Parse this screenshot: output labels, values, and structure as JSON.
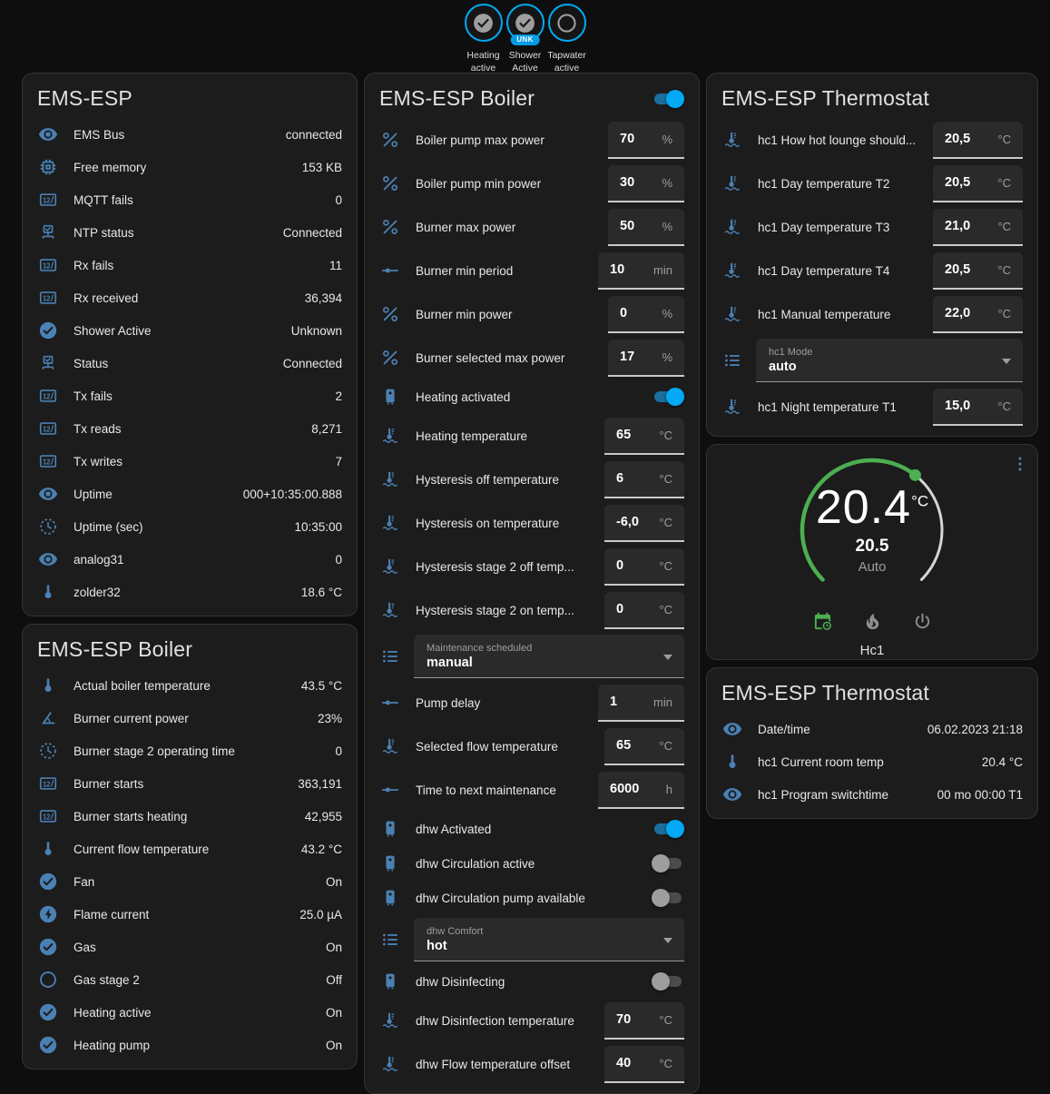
{
  "palette": {
    "accent_blue": "#03a9f4",
    "icon_blue": "#4a80b4",
    "green": "#4caf50",
    "card_bg": "#1c1c1c"
  },
  "badges": [
    {
      "name": "heating-active",
      "icon": "check-circle",
      "label_line1": "Heating",
      "label_line2": "active",
      "sub_badge": ""
    },
    {
      "name": "shower-active",
      "icon": "check-circle",
      "label_line1": "Shower",
      "label_line2": "Active",
      "sub_badge": "UNK"
    },
    {
      "name": "tapwater-active",
      "icon": "circle-outline",
      "label_line1": "Tapwater",
      "label_line2": "active",
      "sub_badge": ""
    }
  ],
  "columns": {
    "left": [
      {
        "title": "EMS-ESP",
        "rows": [
          {
            "kind": "sensor",
            "icon": "eye",
            "label": "EMS Bus",
            "value": "connected"
          },
          {
            "kind": "sensor",
            "icon": "memory",
            "label": "Free memory",
            "value": "153 KB"
          },
          {
            "kind": "sensor",
            "icon": "counter",
            "label": "MQTT fails",
            "value": "0"
          },
          {
            "kind": "sensor",
            "icon": "lan-check",
            "label": "NTP status",
            "value": "Connected"
          },
          {
            "kind": "sensor",
            "icon": "counter",
            "label": "Rx fails",
            "value": "11"
          },
          {
            "kind": "sensor",
            "icon": "counter",
            "label": "Rx received",
            "value": "36,394"
          },
          {
            "kind": "sensor",
            "icon": "check-circle",
            "label": "Shower Active",
            "value": "Unknown"
          },
          {
            "kind": "sensor",
            "icon": "lan-check",
            "label": "Status",
            "value": "Connected"
          },
          {
            "kind": "sensor",
            "icon": "counter",
            "label": "Tx fails",
            "value": "2"
          },
          {
            "kind": "sensor",
            "icon": "counter",
            "label": "Tx reads",
            "value": "8,271"
          },
          {
            "kind": "sensor",
            "icon": "counter",
            "label": "Tx writes",
            "value": "7"
          },
          {
            "kind": "sensor",
            "icon": "eye",
            "label": "Uptime",
            "value": "000+10:35:00.888"
          },
          {
            "kind": "sensor",
            "icon": "progress-clock",
            "label": "Uptime (sec)",
            "value": "10:35:00"
          },
          {
            "kind": "sensor",
            "icon": "eye",
            "label": "analog31",
            "value": "0"
          },
          {
            "kind": "sensor",
            "icon": "thermometer",
            "label": "zolder32",
            "value": "18.6 °C"
          }
        ]
      },
      {
        "title": "EMS-ESP Boiler",
        "rows": [
          {
            "kind": "sensor",
            "icon": "thermometer",
            "label": "Actual boiler temperature",
            "value": "43.5 °C"
          },
          {
            "kind": "sensor",
            "icon": "angle-acute",
            "label": "Burner current power",
            "value": "23%"
          },
          {
            "kind": "sensor",
            "icon": "progress-clock",
            "label": "Burner stage 2 operating time",
            "value": "0"
          },
          {
            "kind": "sensor",
            "icon": "counter",
            "label": "Burner starts",
            "value": "363,191"
          },
          {
            "kind": "sensor",
            "icon": "counter",
            "label": "Burner starts heating",
            "value": "42,955"
          },
          {
            "kind": "sensor",
            "icon": "thermometer",
            "label": "Current flow temperature",
            "value": "43.2 °C"
          },
          {
            "kind": "sensor",
            "icon": "check-circle",
            "label": "Fan",
            "value": "On"
          },
          {
            "kind": "sensor",
            "icon": "flash-circle",
            "label": "Flame current",
            "value": "25.0 µA"
          },
          {
            "kind": "sensor",
            "icon": "check-circle",
            "label": "Gas",
            "value": "On"
          },
          {
            "kind": "sensor",
            "icon": "circle-outline",
            "label": "Gas stage 2",
            "value": "Off"
          },
          {
            "kind": "sensor",
            "icon": "check-circle",
            "label": "Heating active",
            "value": "On"
          },
          {
            "kind": "sensor",
            "icon": "check-circle",
            "label": "Heating pump",
            "value": "On"
          }
        ]
      }
    ],
    "middle": [
      {
        "title": "EMS-ESP Boiler",
        "header_toggle": "on",
        "rows": [
          {
            "kind": "number",
            "icon": "percent",
            "label": "Boiler pump max power",
            "value": "70",
            "unit": "%"
          },
          {
            "kind": "number",
            "icon": "percent",
            "label": "Boiler pump min power",
            "value": "30",
            "unit": "%"
          },
          {
            "kind": "number",
            "icon": "percent",
            "label": "Burner max power",
            "value": "50",
            "unit": "%"
          },
          {
            "kind": "number",
            "icon": "slider",
            "label": "Burner min period",
            "value": "10",
            "unit": "min"
          },
          {
            "kind": "number",
            "icon": "percent",
            "label": "Burner min power",
            "value": "0",
            "unit": "%"
          },
          {
            "kind": "number",
            "icon": "percent",
            "label": "Burner selected max power",
            "value": "17",
            "unit": "%"
          },
          {
            "kind": "toggle",
            "icon": "water-boiler",
            "label": "Heating activated",
            "state": "on"
          },
          {
            "kind": "number",
            "icon": "coolant-temp",
            "label": "Heating temperature",
            "value": "65",
            "unit": "°C"
          },
          {
            "kind": "number",
            "icon": "coolant-temp",
            "label": "Hysteresis off temperature",
            "value": "6",
            "unit": "°C"
          },
          {
            "kind": "number",
            "icon": "coolant-temp",
            "label": "Hysteresis on temperature",
            "value": "-6,0",
            "unit": "°C"
          },
          {
            "kind": "number",
            "icon": "coolant-temp",
            "label": "Hysteresis stage 2 off temp...",
            "value": "0",
            "unit": "°C"
          },
          {
            "kind": "number",
            "icon": "coolant-temp",
            "label": "Hysteresis stage 2 on temp...",
            "value": "0",
            "unit": "°C"
          },
          {
            "kind": "select",
            "icon": "list",
            "label": "Maintenance scheduled",
            "value": "manual"
          },
          {
            "kind": "number",
            "icon": "slider",
            "label": "Pump delay",
            "value": "1",
            "unit": "min"
          },
          {
            "kind": "number",
            "icon": "coolant-temp",
            "label": "Selected flow temperature",
            "value": "65",
            "unit": "°C"
          },
          {
            "kind": "number",
            "icon": "slider",
            "label": "Time to next maintenance",
            "value": "6000",
            "unit": "h"
          },
          {
            "kind": "toggle",
            "icon": "water-boiler",
            "label": "dhw Activated",
            "state": "on"
          },
          {
            "kind": "toggle",
            "icon": "water-boiler",
            "label": "dhw Circulation active",
            "state": "off"
          },
          {
            "kind": "toggle",
            "icon": "water-boiler",
            "label": "dhw Circulation pump available",
            "state": "off"
          },
          {
            "kind": "select",
            "icon": "list",
            "label": "dhw Comfort",
            "value": "hot"
          },
          {
            "kind": "toggle",
            "icon": "water-boiler",
            "label": "dhw Disinfecting",
            "state": "off"
          },
          {
            "kind": "number",
            "icon": "coolant-temp",
            "label": "dhw Disinfection temperature",
            "value": "70",
            "unit": "°C"
          },
          {
            "kind": "number",
            "icon": "coolant-temp",
            "label": "dhw Flow temperature offset",
            "value": "40",
            "unit": "°C"
          }
        ]
      }
    ],
    "right": [
      {
        "title": "EMS-ESP Thermostat",
        "rows": [
          {
            "kind": "number",
            "icon": "coolant-temp",
            "label": "hc1 How hot lounge should...",
            "value": "20,5",
            "unit": "°C"
          },
          {
            "kind": "number",
            "icon": "coolant-temp",
            "label": "hc1 Day temperature T2",
            "value": "20,5",
            "unit": "°C"
          },
          {
            "kind": "number",
            "icon": "coolant-temp",
            "label": "hc1 Day temperature T3",
            "value": "21,0",
            "unit": "°C"
          },
          {
            "kind": "number",
            "icon": "coolant-temp",
            "label": "hc1 Day temperature T4",
            "value": "20,5",
            "unit": "°C"
          },
          {
            "kind": "number",
            "icon": "coolant-temp",
            "label": "hc1 Manual temperature",
            "value": "22,0",
            "unit": "°C"
          },
          {
            "kind": "select",
            "icon": "list",
            "label": "hc1 Mode",
            "value": "auto"
          },
          {
            "kind": "number",
            "icon": "coolant-temp",
            "label": "hc1 Night temperature T1",
            "value": "15,0",
            "unit": "°C"
          }
        ]
      },
      {
        "kind": "thermostat",
        "current_temp": "20.4",
        "unit": "°C",
        "target_temp": "20.5",
        "mode_label": "Auto",
        "entity_name": "Hc1",
        "mode_icons": [
          {
            "icon": "calendar-clock",
            "active": true
          },
          {
            "icon": "fire",
            "active": false
          },
          {
            "icon": "power",
            "active": false
          }
        ]
      },
      {
        "title": "EMS-ESP Thermostat",
        "rows": [
          {
            "kind": "sensor",
            "icon": "eye",
            "label": "Date/time",
            "value": "06.02.2023 21:18"
          },
          {
            "kind": "sensor",
            "icon": "thermometer",
            "label": "hc1 Current room temp",
            "value": "20.4 °C"
          },
          {
            "kind": "sensor",
            "icon": "eye",
            "label": "hc1 Program switchtime",
            "value": "00 mo 00:00 T1"
          }
        ]
      }
    ]
  }
}
